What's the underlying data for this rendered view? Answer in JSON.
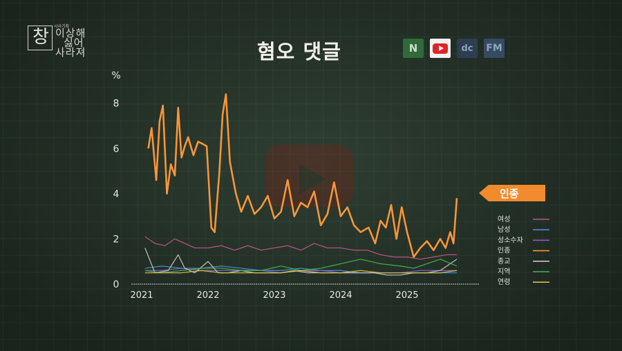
{
  "logo": {
    "small_text": "시사기획",
    "hanja": "창",
    "line1": "이상해",
    "line2": "싫어",
    "line3": "사라져"
  },
  "title": "혐오 댓글",
  "platforms": [
    {
      "name": "naver",
      "label": "N",
      "icon": "naver-icon"
    },
    {
      "name": "youtube",
      "label": "",
      "icon": "youtube-icon"
    },
    {
      "name": "dcinside",
      "label": "dc",
      "icon": "dcinside-icon"
    },
    {
      "name": "fmkorea",
      "label": "FM",
      "icon": "fmkorea-icon"
    }
  ],
  "highlight_tag": "인종",
  "colors": {
    "background": "#27352b",
    "highlight": "#f7963a",
    "tag": "#f28a2e"
  },
  "chart_data": {
    "type": "line",
    "ylabel": "%",
    "ylim": [
      0,
      8.6
    ],
    "yticks": [
      0,
      2,
      4,
      6,
      8
    ],
    "ytick_labels": [
      "0",
      "2",
      "4",
      "6",
      "8"
    ],
    "xlim": [
      2021.0,
      2026.0
    ],
    "xticks": [
      2021,
      2022,
      2023,
      2024,
      2025
    ],
    "xtick_labels": [
      "2021",
      "2022",
      "2023",
      "2024",
      "2025"
    ],
    "legend_position": "right",
    "series": [
      {
        "name": "여성",
        "color": "#c0558a",
        "x": [
          2021.05,
          2021.2,
          2021.35,
          2021.5,
          2021.65,
          2021.8,
          2022.0,
          2022.2,
          2022.4,
          2022.6,
          2022.8,
          2023.0,
          2023.2,
          2023.4,
          2023.6,
          2023.8,
          2024.0,
          2024.2,
          2024.4,
          2024.6,
          2024.8,
          2025.0,
          2025.2,
          2025.4,
          2025.6,
          2025.75
        ],
        "y": [
          2.1,
          1.8,
          1.7,
          2.0,
          1.8,
          1.6,
          1.6,
          1.7,
          1.5,
          1.7,
          1.5,
          1.6,
          1.7,
          1.5,
          1.8,
          1.6,
          1.6,
          1.5,
          1.5,
          1.3,
          1.2,
          1.2,
          1.1,
          1.2,
          1.3,
          1.3
        ]
      },
      {
        "name": "남성",
        "color": "#4a8fd1",
        "x": [
          2021.05,
          2021.3,
          2021.6,
          2021.9,
          2022.2,
          2022.5,
          2022.8,
          2023.1,
          2023.4,
          2023.7,
          2024.0,
          2024.3,
          2024.6,
          2024.9,
          2025.2,
          2025.5,
          2025.75
        ],
        "y": [
          0.7,
          0.8,
          0.7,
          0.7,
          0.8,
          0.7,
          0.6,
          0.6,
          0.7,
          0.6,
          0.6,
          0.5,
          0.5,
          0.5,
          0.5,
          0.5,
          0.5
        ]
      },
      {
        "name": "성소수자",
        "color": "#8a5fc4",
        "x": [
          2021.05,
          2021.3,
          2021.6,
          2021.9,
          2022.2,
          2022.5,
          2022.8,
          2023.1,
          2023.4,
          2023.7,
          2024.0,
          2024.3,
          2024.6,
          2024.9,
          2025.2,
          2025.5,
          2025.75
        ],
        "y": [
          0.6,
          0.6,
          0.7,
          0.6,
          0.6,
          0.6,
          0.6,
          0.5,
          0.6,
          0.6,
          0.5,
          0.5,
          0.5,
          0.5,
          0.6,
          0.6,
          0.6
        ]
      },
      {
        "name": "인종",
        "color": "#f7963a",
        "x": [
          2021.1,
          2021.15,
          2021.22,
          2021.27,
          2021.32,
          2021.38,
          2021.44,
          2021.5,
          2021.55,
          2021.6,
          2021.65,
          2021.7,
          2021.78,
          2021.85,
          2021.92,
          2021.98,
          2022.05,
          2022.1,
          2022.17,
          2022.22,
          2022.27,
          2022.33,
          2022.42,
          2022.5,
          2022.6,
          2022.7,
          2022.8,
          2022.9,
          2023.0,
          2023.1,
          2023.2,
          2023.3,
          2023.4,
          2023.5,
          2023.6,
          2023.7,
          2023.8,
          2023.9,
          2024.0,
          2024.1,
          2024.2,
          2024.3,
          2024.42,
          2024.52,
          2024.6,
          2024.68,
          2024.76,
          2024.84,
          2024.92,
          2025.0,
          2025.1,
          2025.2,
          2025.3,
          2025.4,
          2025.5,
          2025.58,
          2025.65,
          2025.7,
          2025.75
        ],
        "y": [
          6.0,
          6.9,
          4.6,
          7.2,
          7.9,
          4.0,
          5.3,
          4.8,
          7.8,
          5.6,
          6.1,
          6.5,
          5.7,
          6.3,
          6.2,
          6.1,
          2.5,
          2.3,
          4.9,
          7.5,
          8.4,
          5.4,
          4.0,
          3.2,
          3.9,
          3.1,
          3.4,
          3.9,
          2.9,
          3.2,
          4.6,
          3.0,
          3.6,
          3.4,
          4.1,
          2.6,
          3.1,
          4.5,
          3.0,
          3.4,
          2.6,
          2.3,
          2.5,
          1.8,
          2.8,
          2.5,
          3.5,
          2.0,
          3.4,
          2.3,
          1.2,
          1.6,
          1.9,
          1.5,
          2.0,
          1.6,
          2.3,
          1.8,
          3.8
        ]
      },
      {
        "name": "종교",
        "color": "#c8c8c0",
        "x": [
          2021.05,
          2021.2,
          2021.4,
          2021.55,
          2021.65,
          2021.8,
          2022.0,
          2022.15,
          2022.3,
          2022.5,
          2022.7,
          2022.9,
          2023.1,
          2023.3,
          2023.5,
          2023.7,
          2023.9,
          2024.1,
          2024.3,
          2024.5,
          2024.7,
          2024.9,
          2025.1,
          2025.3,
          2025.5,
          2025.75
        ],
        "y": [
          1.6,
          0.5,
          0.6,
          1.3,
          0.7,
          0.5,
          1.0,
          0.5,
          0.5,
          0.6,
          0.5,
          0.5,
          0.5,
          0.6,
          0.5,
          0.5,
          0.5,
          0.5,
          0.5,
          0.5,
          0.4,
          0.4,
          0.5,
          0.5,
          0.6,
          1.1
        ]
      },
      {
        "name": "지역",
        "color": "#46b050",
        "x": [
          2021.05,
          2021.3,
          2021.6,
          2021.9,
          2022.2,
          2022.5,
          2022.8,
          2023.1,
          2023.4,
          2023.7,
          2024.0,
          2024.3,
          2024.6,
          2024.9,
          2025.1,
          2025.3,
          2025.5,
          2025.75
        ],
        "y": [
          0.6,
          0.5,
          0.6,
          0.7,
          0.7,
          0.6,
          0.6,
          0.8,
          0.6,
          0.7,
          0.9,
          1.1,
          0.9,
          0.8,
          0.7,
          0.9,
          1.1,
          0.8
        ]
      },
      {
        "name": "연령",
        "color": "#d6c24a",
        "x": [
          2021.05,
          2021.3,
          2021.6,
          2021.9,
          2022.2,
          2022.5,
          2022.8,
          2023.1,
          2023.4,
          2023.7,
          2024.0,
          2024.3,
          2024.6,
          2024.9,
          2025.2,
          2025.5,
          2025.75
        ],
        "y": [
          0.5,
          0.5,
          0.5,
          0.6,
          0.5,
          0.5,
          0.5,
          0.5,
          0.6,
          0.5,
          0.5,
          0.6,
          0.5,
          0.5,
          0.5,
          0.5,
          0.6
        ]
      }
    ]
  }
}
